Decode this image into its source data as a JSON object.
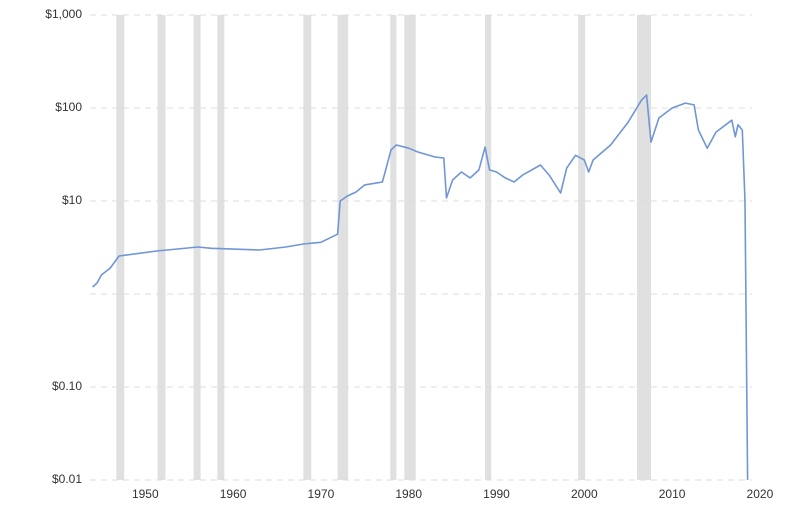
{
  "chart_data": {
    "type": "line",
    "log_scale": true,
    "grid": true,
    "xlim": [
      1943.7,
      2019.1
    ],
    "xticks": [
      1950,
      1960,
      1970,
      1980,
      1990,
      2000,
      2010,
      2020
    ],
    "ylim": [
      0.01,
      1000
    ],
    "yticks": [
      {
        "value": 0.01,
        "label": "$0.01"
      },
      {
        "value": 0.1,
        "label": "$0.10"
      },
      {
        "value": 1,
        "label": null
      },
      {
        "value": 10,
        "label": "$10"
      },
      {
        "value": 100,
        "label": "$100"
      },
      {
        "value": 1000,
        "label": "$1,000"
      }
    ],
    "shaded_ranges": [
      [
        1946.7,
        1947.6
      ],
      [
        1951.4,
        1952.3
      ],
      [
        1955.5,
        1956.3
      ],
      [
        1958.2,
        1959.0
      ],
      [
        1968.0,
        1968.9
      ],
      [
        1971.9,
        1973.1
      ],
      [
        1977.9,
        1978.6
      ],
      [
        1979.5,
        1980.8
      ],
      [
        1988.7,
        1989.4
      ],
      [
        1999.3,
        2000.1
      ],
      [
        2006.0,
        2007.6
      ]
    ],
    "shade_color": "#e0e0e0",
    "x": [
      1944.0,
      1944.5,
      1945,
      1946,
      1947,
      1951.3,
      1956,
      1957.5,
      1963,
      1966,
      1968,
      1970,
      1971.9,
      1972.2,
      1973,
      1974,
      1975,
      1977,
      1978,
      1978.6,
      1980,
      1981,
      1983,
      1984,
      1984.3,
      1985,
      1986,
      1987,
      1988,
      1988.7,
      1989.2,
      1990,
      1991,
      1992,
      1993,
      1995,
      1996,
      1997.3,
      1998,
      1999,
      2000,
      2000.5,
      2001,
      2003,
      2005,
      2006.5,
      2007.1,
      2007.6,
      2008.5,
      2010,
      2011.5,
      2012.5,
      2013,
      2014,
      2015,
      2016.8,
      2017.2,
      2017.5,
      2018,
      2018.3,
      2018.6
    ],
    "series": [
      {
        "color": "#6f96d6",
        "values": [
          1.19,
          1.31,
          1.6,
          1.9,
          2.56,
          2.9,
          3.2,
          3.1,
          2.97,
          3.2,
          3.45,
          3.6,
          4.4,
          10,
          11.3,
          12.5,
          14.9,
          16,
          35.5,
          40,
          37,
          33.7,
          29.7,
          29,
          10.8,
          16.8,
          20.5,
          17.7,
          21.6,
          38,
          21.6,
          20.5,
          17.7,
          16,
          19.1,
          24.4,
          19,
          12.2,
          22.6,
          31,
          27.6,
          20.5,
          27.6,
          40,
          70.6,
          121,
          138,
          43,
          78,
          100,
          113,
          108,
          58,
          37,
          55,
          74,
          49,
          66,
          58,
          10,
          0.01
        ]
      }
    ]
  }
}
